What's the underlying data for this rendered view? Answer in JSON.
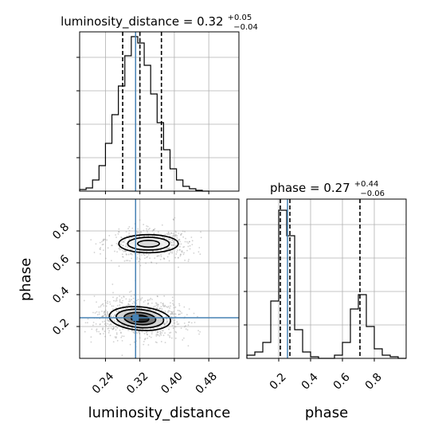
{
  "chart_data": {
    "type": "corner",
    "parameters": [
      "luminosity_distance",
      "phase"
    ],
    "truths": {
      "luminosity_distance": 0.31,
      "phase": 0.255
    },
    "grid": true,
    "panels": [
      {
        "id": "hist-luminosity-distance",
        "type": "step-histogram",
        "parameter": "luminosity_distance",
        "title": {
          "main": "luminosity_distance = 0.32",
          "sup": "+0.05",
          "sub": "−0.04"
        },
        "xlim": [
          0.18,
          0.55
        ],
        "ylim": [
          0,
          1.0
        ],
        "yticks_count": 4,
        "bin_edges": [
          0.18,
          0.195,
          0.21,
          0.225,
          0.24,
          0.255,
          0.27,
          0.285,
          0.3,
          0.315,
          0.33,
          0.345,
          0.36,
          0.375,
          0.39,
          0.405,
          0.42,
          0.435,
          0.45,
          0.465,
          0.48
        ],
        "counts": [
          0.01,
          0.02,
          0.07,
          0.16,
          0.3,
          0.48,
          0.66,
          0.85,
          0.97,
          0.93,
          0.79,
          0.61,
          0.43,
          0.26,
          0.14,
          0.07,
          0.03,
          0.015,
          0.005,
          0.0
        ],
        "quantiles": [
          0.28,
          0.32,
          0.37
        ]
      },
      {
        "id": "hist-phase",
        "type": "step-histogram",
        "parameter": "phase",
        "title": {
          "main": "phase = 0.27",
          "sup": "+0.44",
          "sub": "−0.06"
        },
        "xlim": [
          0.0,
          1.0
        ],
        "ylim": [
          0,
          1.0
        ],
        "xticks": [
          0.2,
          0.4,
          0.6,
          0.8
        ],
        "yticks_count": 4,
        "bin_edges": [
          0.0,
          0.05,
          0.1,
          0.15,
          0.2,
          0.25,
          0.3,
          0.35,
          0.4,
          0.45,
          0.5,
          0.55,
          0.6,
          0.65,
          0.7,
          0.75,
          0.8,
          0.85,
          0.9,
          0.95,
          1.0
        ],
        "counts": [
          0.02,
          0.04,
          0.1,
          0.36,
          0.93,
          0.77,
          0.18,
          0.04,
          0.01,
          0.0,
          0.0,
          0.02,
          0.1,
          0.31,
          0.4,
          0.2,
          0.06,
          0.02,
          0.01,
          0.0
        ],
        "quantiles": [
          0.21,
          0.27,
          0.71
        ]
      },
      {
        "id": "contour-lumdist-phase",
        "type": "2d-density",
        "x": "luminosity_distance",
        "y": "phase",
        "xlim": [
          0.18,
          0.55
        ],
        "ylim": [
          0.0,
          1.0
        ],
        "xticks": [
          0.24,
          0.32,
          0.4,
          0.48
        ],
        "yticks": [
          0.2,
          0.4,
          0.6,
          0.8
        ],
        "modes": [
          {
            "center": [
              0.32,
              0.25
            ],
            "spread": [
              0.04,
              0.05
            ],
            "weight": 0.65,
            "tilt": -0.08,
            "contour_scales": [
              0.45,
              0.8,
              1.2,
              1.55
            ]
          },
          {
            "center": [
              0.34,
              0.72
            ],
            "spread": [
              0.04,
              0.04
            ],
            "weight": 0.35,
            "tilt": 0.0,
            "contour_scales": [
              0.55,
              1.05,
              1.5
            ]
          }
        ]
      }
    ],
    "xlabels": [
      "luminosity_distance",
      "phase"
    ],
    "ylabel": "phase",
    "colors": {
      "truth": "#4682b4",
      "line": "#000000",
      "grid": "#b0b0b0",
      "points": "#9a9a9a"
    }
  }
}
